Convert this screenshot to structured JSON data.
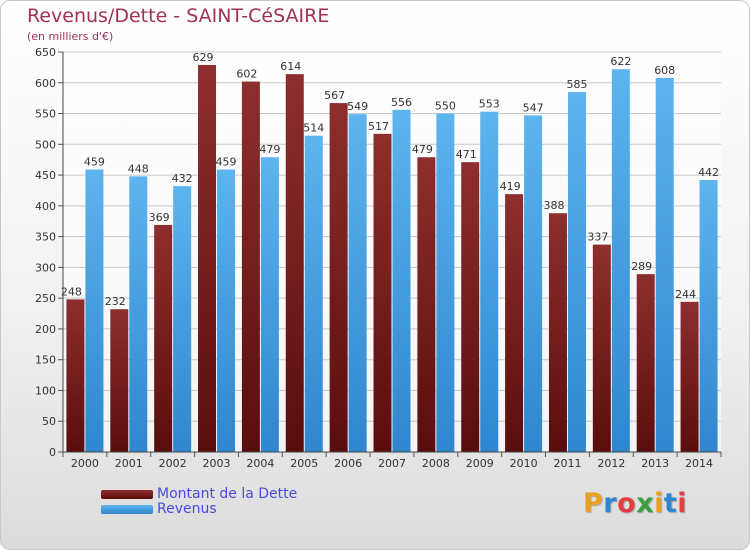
{
  "header": {
    "title": "Revenus/Dette - SAINT-CéSAIRE",
    "subtitle": "(en milliers d'€)"
  },
  "legend": {
    "debt_label": "Montant de la Dette",
    "revenue_label": "Revenus"
  },
  "logo": {
    "text": "Proxiti"
  },
  "colors": {
    "debt": "#7a1f1f",
    "revenue": "#4aa6e6",
    "title": "#a0305a",
    "legend_text": "#4a4ae0"
  },
  "chart_data": {
    "type": "bar",
    "title": "Revenus/Dette - SAINT-CéSAIRE",
    "subtitle": "(en milliers d'€)",
    "categories": [
      "2000",
      "2001",
      "2002",
      "2003",
      "2004",
      "2005",
      "2006",
      "2007",
      "2008",
      "2009",
      "2010",
      "2011",
      "2012",
      "2013",
      "2014"
    ],
    "series": [
      {
        "name": "Montant de la Dette",
        "values": [
          248,
          232,
          369,
          629,
          602,
          614,
          567,
          517,
          479,
          471,
          419,
          388,
          337,
          289,
          244
        ]
      },
      {
        "name": "Revenus",
        "values": [
          459,
          448,
          432,
          459,
          479,
          514,
          549,
          556,
          550,
          553,
          547,
          585,
          622,
          608,
          442
        ]
      }
    ],
    "ylim": [
      0,
      650
    ],
    "yticks": [
      0,
      50,
      100,
      150,
      200,
      250,
      300,
      350,
      400,
      450,
      500,
      550,
      600,
      650
    ],
    "grid": true,
    "legend_position": "bottom-left"
  }
}
